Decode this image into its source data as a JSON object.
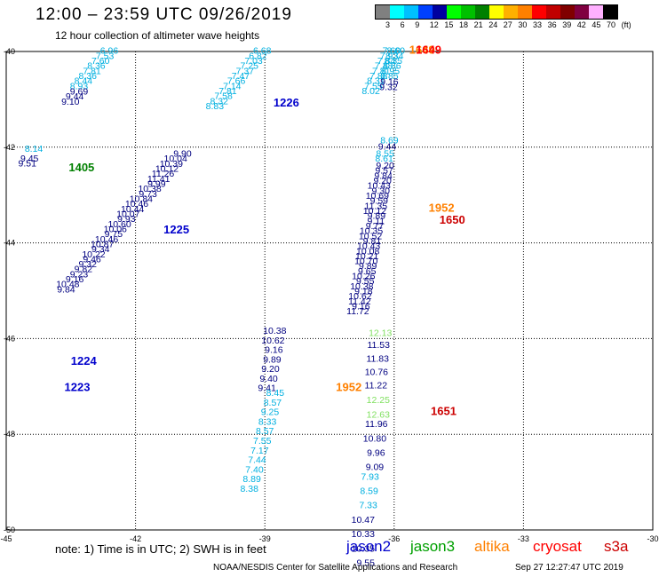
{
  "header": {
    "title": "12:00 – 23:59 UTC 09/26/2019",
    "subtitle": "12 hour collection of altimeter wave heights"
  },
  "legend": {
    "colors": [
      "#808080",
      "#00ffff",
      "#00c0ff",
      "#0040ff",
      "#0000a0",
      "#00ff00",
      "#00c000",
      "#008000",
      "#ffff00",
      "#ffb000",
      "#ff8000",
      "#ff0000",
      "#c00000",
      "#800000",
      "#800040",
      "#ffb0ff",
      "#000000"
    ],
    "labels": [
      "3",
      "6",
      "9",
      "12",
      "15",
      "18",
      "21",
      "24",
      "27",
      "30",
      "33",
      "36",
      "39",
      "42",
      "45",
      "70",
      "(ft)"
    ]
  },
  "map": {
    "lon_ticks": [
      "-45",
      "-42",
      "-39",
      "-36",
      "-33",
      "-30"
    ],
    "lat_ticks": [
      "-40",
      "-42",
      "-44",
      "-46",
      "-48",
      "-50"
    ],
    "track_labels": [
      {
        "text": "1226",
        "color": "#0000cc",
        "lon": -38.8,
        "lat": -41.15
      },
      {
        "text": "1405",
        "color": "#008000",
        "lon": -43.55,
        "lat": -42.5
      },
      {
        "text": "1225",
        "color": "#0000cc",
        "lon": -41.35,
        "lat": -43.8
      },
      {
        "text": "1224",
        "color": "#0000cc",
        "lon": -43.5,
        "lat": -46.55
      },
      {
        "text": "1223",
        "color": "#0000cc",
        "lon": -43.65,
        "lat": -47.1
      },
      {
        "text": "1649",
        "color": "#ff8000",
        "lon": -35.65,
        "lat": -40.05
      },
      {
        "text": "1649",
        "color": "#ff0000",
        "lon": -35.5,
        "lat": -40.05
      },
      {
        "text": "1952",
        "color": "#ff8000",
        "lon": -35.2,
        "lat": -43.35
      },
      {
        "text": "1650",
        "color": "#cc0000",
        "lon": -34.95,
        "lat": -43.6
      },
      {
        "text": "1952",
        "color": "#ff8000",
        "lon": -37.35,
        "lat": -47.1
      },
      {
        "text": "1651",
        "color": "#cc0000",
        "lon": -35.15,
        "lat": -47.6
      }
    ],
    "tracks": [
      {
        "color": "#00b0e0",
        "lat0": -40.05,
        "dlat": 0.105,
        "lon0": -42.4,
        "dlon": -0.1,
        "values": [
          "6.96",
          "7.53",
          "7.60",
          "8.36",
          "7.81",
          "8.36",
          "8.44",
          "8.93"
        ]
      },
      {
        "color": "#000080",
        "lat0": -40.9,
        "dlat": 0.105,
        "lon0": -43.1,
        "dlon": -0.1,
        "values": [
          "9.69",
          "9.44",
          "9.10"
        ]
      },
      {
        "color": "#00b0e0",
        "lat0": -42.1,
        "dlat": 0.105,
        "lon0": -44.15,
        "dlon": -0.05,
        "values": [
          "8.14"
        ]
      },
      {
        "color": "#000080",
        "lat0": -42.3,
        "dlat": 0.105,
        "lon0": -44.25,
        "dlon": -0.05,
        "values": [
          "9.45",
          "9.51"
        ]
      },
      {
        "color": "#00b0e0",
        "lat0": -40.05,
        "dlat": 0.105,
        "lon0": -38.85,
        "dlon": -0.1,
        "values": [
          "6.68",
          "6.82",
          "7.03",
          "7.25",
          "7.37",
          "7.47",
          "7.66",
          "7.14",
          "7.81",
          "7.58",
          "8.32",
          "8.83"
        ]
      },
      {
        "color": "#000080",
        "lat0": -42.2,
        "dlat": 0.105,
        "lon0": -40.7,
        "dlon": -0.1,
        "values": [
          "9.90",
          "10.04",
          "10.39",
          "10.12",
          "11.26",
          "11.41",
          "9.99",
          "10.38",
          "9.73",
          "10.84",
          "10.46",
          "10.44",
          "10.07",
          "9.93",
          "10.60",
          "10.06",
          "9.75",
          "10.46",
          "10.87",
          "9.34",
          "10.22",
          "9.46",
          "9.32",
          "9.82",
          "9.23",
          "9.16",
          "10.48",
          "9.84"
        ]
      },
      {
        "color": "#00b0e0",
        "lat0": -40.05,
        "dlat": 0.105,
        "lon0": -35.85,
        "dlon": -0.06,
        "values": [
          "7.60",
          "7.93",
          "7.84",
          "7.48",
          "7.81",
          "7.88",
          "8.31",
          "7.55",
          "8.02"
        ]
      },
      {
        "color": "#00b0e0",
        "lat0": -40.05,
        "dlat": 0.105,
        "lon0": -35.75,
        "dlon": -0.03,
        "values": [
          "8.60",
          "8.34",
          "8.35",
          "8.86",
          "8.95",
          "8.85"
        ]
      },
      {
        "color": "#000080",
        "lat0": -40.7,
        "dlat": 0.105,
        "lon0": -35.9,
        "dlon": -0.02,
        "values": [
          "9.16",
          "9.32"
        ]
      },
      {
        "color": "#00b0e0",
        "lat0": -41.92,
        "dlat": 0.105,
        "lon0": -35.9,
        "dlon": -0.02,
        "values": [
          "8.69"
        ]
      },
      {
        "color": "#000080",
        "lat0": -42.05,
        "dlat": 0.105,
        "lon0": -35.95,
        "dlon": -0.02,
        "values": [
          "9.44"
        ]
      },
      {
        "color": "#00b0e0",
        "lat0": -42.2,
        "dlat": 0.105,
        "lon0": -36.0,
        "dlon": -0.02,
        "values": [
          "8.55",
          "8.61"
        ]
      },
      {
        "color": "#000080",
        "lat0": -42.45,
        "dlat": 0.105,
        "lon0": -36.0,
        "dlon": -0.02,
        "values": [
          "9.20",
          "9.57",
          "9.84",
          "9.20",
          "10.43",
          "9.30",
          "10.69",
          "9.59",
          "11.35",
          "10.12",
          "9.89",
          "9.11",
          "9.77",
          "10.35",
          "10.52",
          "9.81",
          "10.43",
          "10.08",
          "10.21",
          "10.70",
          "9.89",
          "9.65",
          "10.26",
          "9.55",
          "10.38",
          "9.18",
          "10.62",
          "11.42",
          "9.16",
          "11.72"
        ]
      },
      {
        "color": "#000080",
        "lat0": -45.9,
        "dlat": 0.2,
        "lon0": -38.5,
        "dlon": -0.04,
        "values": [
          "10.38",
          "10.62",
          "9.16",
          "9.89",
          "9.20",
          "9.40",
          "9.41"
        ]
      },
      {
        "color": "#00b0e0",
        "lat0": -47.2,
        "dlat": 0.2,
        "lon0": -38.55,
        "dlon": -0.06,
        "values": [
          "8.45",
          "8.57",
          "9.25",
          "8.33",
          "8.57",
          "7.55",
          "7.17",
          "7.44",
          "7.40",
          "8.89",
          "8.38"
        ]
      },
      {
        "color": "#80e060",
        "lat0": -45.95,
        "dlat": 0.105,
        "lon0": -36.05,
        "dlon": 0.0,
        "values": [
          "12.13"
        ]
      },
      {
        "color": "#000080",
        "lat0": -46.2,
        "dlat": 0.28,
        "lon0": -36.1,
        "dlon": -0.02,
        "values": [
          "11.53",
          "11.83",
          "10.76",
          "11.22"
        ]
      },
      {
        "color": "#80e060",
        "lat0": -47.35,
        "dlat": 0.3,
        "lon0": -36.1,
        "dlon": 0.0,
        "values": [
          "12.25",
          "12.63"
        ]
      },
      {
        "color": "#000080",
        "lat0": -47.85,
        "dlat": 0.3,
        "lon0": -36.15,
        "dlon": -0.03,
        "values": [
          "11.96",
          "10.80",
          "9.96",
          "9.09"
        ]
      },
      {
        "color": "#00b0e0",
        "lat0": -48.95,
        "dlat": 0.3,
        "lon0": -36.35,
        "dlon": -0.02,
        "values": [
          "7.93",
          "8.59",
          "7.33"
        ]
      },
      {
        "color": "#000080",
        "lat0": -49.85,
        "dlat": 0.3,
        "lon0": -36.45,
        "dlon": 0.0,
        "values": [
          "10.47",
          "10.33",
          "10.35",
          "9.55"
        ]
      }
    ]
  },
  "note": "note:  1) Time is in UTC;  2) SWH is in feet",
  "satellites": [
    {
      "name": "jason2",
      "color": "#0000cc"
    },
    {
      "name": "jason3",
      "color": "#00a000"
    },
    {
      "name": "altika",
      "color": "#ff8000"
    },
    {
      "name": "cryosat",
      "color": "#ff0000"
    },
    {
      "name": "s3a",
      "color": "#cc0000"
    }
  ],
  "footer": "NOAA/NESDIS Center for Satellite Applications and Research",
  "timestamp": "Sep 27 12:27:47 UTC 2019"
}
